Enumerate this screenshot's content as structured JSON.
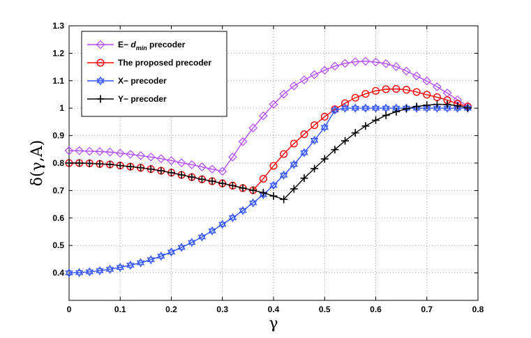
{
  "chart_data": {
    "type": "line",
    "title": "",
    "xlabel": "γ",
    "ylabel": "δ(γ,A)",
    "xlim": [
      0,
      0.8
    ],
    "ylim": [
      0.3,
      1.3
    ],
    "xticks": [
      "0",
      "0.1",
      "0.2",
      "0.3",
      "0.4",
      "0.5",
      "0.6",
      "0.7",
      "0.8"
    ],
    "yticks": [
      "0.4",
      "0.5",
      "0.6",
      "0.7",
      "0.8",
      "0.9",
      "1",
      "1.1",
      "1.2",
      "1.3"
    ],
    "grid": true,
    "legend_position": "top-left",
    "series": [
      {
        "name_prefix": "E− ",
        "name_math": "d",
        "name_sub": "min",
        "name_suffix": " precoder",
        "color": "#b449ff",
        "marker": "diamond",
        "x": [
          0,
          0.02,
          0.04,
          0.06,
          0.08,
          0.1,
          0.12,
          0.14,
          0.16,
          0.18,
          0.2,
          0.22,
          0.24,
          0.26,
          0.28,
          0.3,
          0.32,
          0.34,
          0.36,
          0.38,
          0.4,
          0.42,
          0.44,
          0.46,
          0.48,
          0.5,
          0.52,
          0.54,
          0.56,
          0.58,
          0.6,
          0.62,
          0.64,
          0.66,
          0.68,
          0.7,
          0.72,
          0.74,
          0.76,
          0.78
        ],
        "values": [
          0.845,
          0.845,
          0.843,
          0.842,
          0.84,
          0.836,
          0.832,
          0.827,
          0.822,
          0.816,
          0.809,
          0.801,
          0.794,
          0.786,
          0.778,
          0.77,
          0.822,
          0.878,
          0.928,
          0.972,
          1.014,
          1.051,
          1.081,
          1.103,
          1.122,
          1.138,
          1.153,
          1.163,
          1.169,
          1.171,
          1.168,
          1.162,
          1.151,
          1.135,
          1.117,
          1.099,
          1.078,
          1.055,
          1.03,
          1.007
        ]
      },
      {
        "name": "The proposed precoder",
        "color": "#ff0000",
        "marker": "circle",
        "x": [
          0,
          0.02,
          0.04,
          0.06,
          0.08,
          0.1,
          0.12,
          0.14,
          0.16,
          0.18,
          0.2,
          0.22,
          0.24,
          0.26,
          0.28,
          0.3,
          0.32,
          0.34,
          0.36,
          0.38,
          0.4,
          0.42,
          0.44,
          0.46,
          0.48,
          0.5,
          0.52,
          0.54,
          0.56,
          0.58,
          0.6,
          0.62,
          0.64,
          0.66,
          0.68,
          0.7,
          0.72,
          0.74,
          0.76,
          0.78
        ],
        "values": [
          0.8,
          0.8,
          0.799,
          0.797,
          0.795,
          0.791,
          0.787,
          0.783,
          0.778,
          0.772,
          0.765,
          0.757,
          0.749,
          0.741,
          0.734,
          0.726,
          0.718,
          0.709,
          0.701,
          0.743,
          0.79,
          0.833,
          0.871,
          0.905,
          0.938,
          0.969,
          0.996,
          1.018,
          1.038,
          1.052,
          1.063,
          1.069,
          1.07,
          1.067,
          1.059,
          1.049,
          1.04,
          1.029,
          1.016,
          1.006
        ]
      },
      {
        "name": "X− precoder",
        "color": "#2b4fff",
        "marker": "hexagram",
        "x": [
          0,
          0.02,
          0.04,
          0.06,
          0.08,
          0.1,
          0.12,
          0.14,
          0.16,
          0.18,
          0.2,
          0.22,
          0.24,
          0.26,
          0.28,
          0.3,
          0.32,
          0.34,
          0.36,
          0.38,
          0.4,
          0.42,
          0.44,
          0.46,
          0.48,
          0.5,
          0.52,
          0.54,
          0.56,
          0.58,
          0.6,
          0.62,
          0.64,
          0.66,
          0.68,
          0.7,
          0.72,
          0.74,
          0.76,
          0.78
        ],
        "values": [
          0.4,
          0.401,
          0.404,
          0.408,
          0.413,
          0.42,
          0.428,
          0.437,
          0.448,
          0.461,
          0.476,
          0.493,
          0.511,
          0.531,
          0.553,
          0.577,
          0.601,
          0.627,
          0.655,
          0.685,
          0.719,
          0.756,
          0.795,
          0.838,
          0.883,
          0.93,
          0.993,
          1.0,
          1.0,
          1.0,
          1.0,
          1.0,
          1.0,
          1.0,
          1.0,
          1.0,
          1.0,
          1.0,
          1.0,
          1.0
        ]
      },
      {
        "name": "Y− precoder",
        "color": "#000000",
        "marker": "plus",
        "x": [
          0,
          0.02,
          0.04,
          0.06,
          0.08,
          0.1,
          0.12,
          0.14,
          0.16,
          0.18,
          0.2,
          0.22,
          0.24,
          0.26,
          0.28,
          0.3,
          0.32,
          0.34,
          0.36,
          0.38,
          0.4,
          0.42,
          0.44,
          0.46,
          0.48,
          0.5,
          0.52,
          0.54,
          0.56,
          0.58,
          0.6,
          0.62,
          0.64,
          0.66,
          0.68,
          0.7,
          0.72,
          0.74,
          0.76,
          0.78
        ],
        "values": [
          0.8,
          0.8,
          0.799,
          0.797,
          0.795,
          0.791,
          0.787,
          0.783,
          0.778,
          0.772,
          0.765,
          0.757,
          0.749,
          0.741,
          0.734,
          0.726,
          0.718,
          0.709,
          0.701,
          0.692,
          0.68,
          0.668,
          0.706,
          0.745,
          0.78,
          0.815,
          0.849,
          0.881,
          0.91,
          0.935,
          0.956,
          0.974,
          0.987,
          0.998,
          1.006,
          1.011,
          1.014,
          1.013,
          1.009,
          1.001
        ]
      }
    ]
  }
}
